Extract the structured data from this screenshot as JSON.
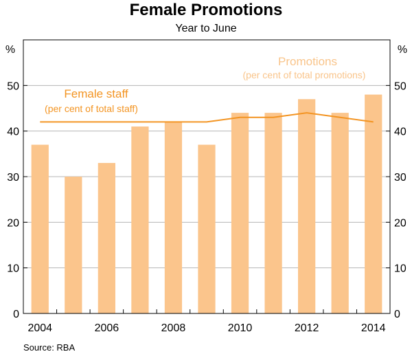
{
  "chart_data": {
    "type": "bar",
    "title": "Female Promotions",
    "subtitle": "Year to June",
    "y_unit_left": "%",
    "y_unit_right": "%",
    "ylim": [
      0,
      60
    ],
    "yticks": [
      0,
      10,
      20,
      30,
      40,
      50
    ],
    "grid": true,
    "x": [
      2004,
      2005,
      2006,
      2007,
      2008,
      2009,
      2010,
      2011,
      2012,
      2013,
      2014
    ],
    "x_tick_labels": [
      "2004",
      "2006",
      "2008",
      "2010",
      "2012",
      "2014"
    ],
    "series": [
      {
        "name": "Promotions",
        "type": "bar",
        "label_line1": "Promotions",
        "label_line2": "(per cent of total promotions)",
        "color": "#fbc58c",
        "values": [
          37,
          30,
          33,
          41,
          42,
          37,
          44,
          44,
          47,
          44,
          48
        ]
      },
      {
        "name": "Female staff",
        "type": "line",
        "label_line1": "Female staff",
        "label_line2": "(per cent of total staff)",
        "color": "#f39422",
        "values": [
          42,
          42,
          42,
          42,
          42,
          42,
          43,
          43,
          44,
          43,
          42
        ]
      }
    ],
    "source": "Source: RBA"
  }
}
